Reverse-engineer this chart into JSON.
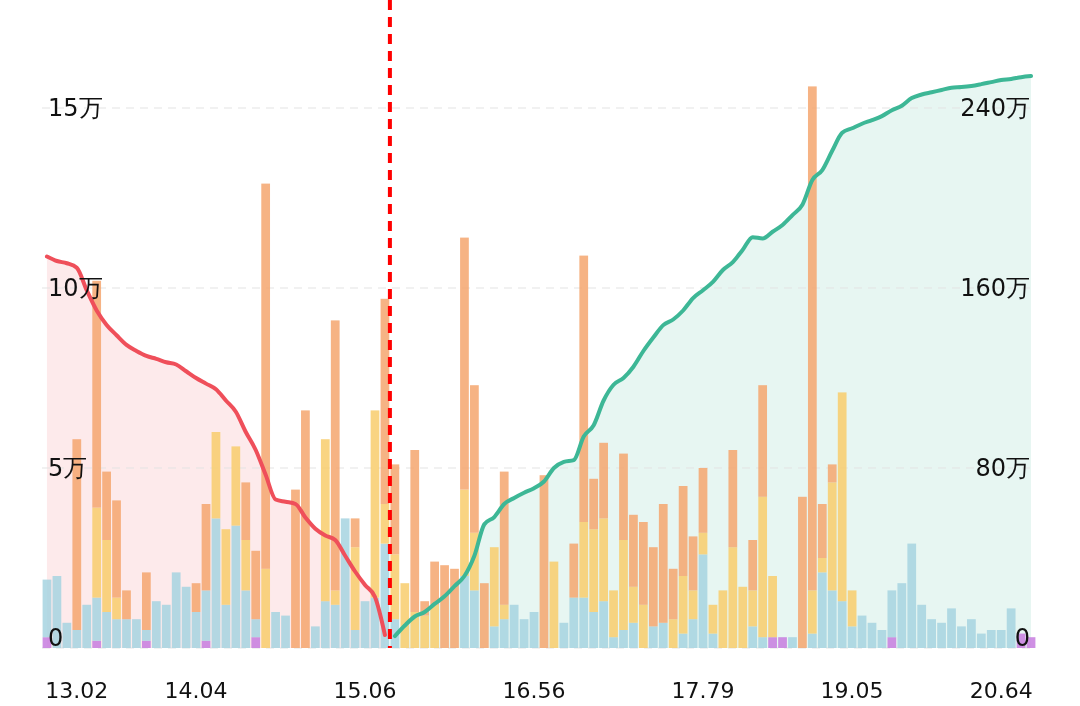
{
  "chart_data": {
    "type": "bar",
    "stacked": true,
    "categories": [
      null,
      null,
      null,
      "13.02",
      null,
      null,
      null,
      null,
      null,
      null,
      null,
      null,
      null,
      null,
      null,
      "14.04",
      null,
      null,
      null,
      null,
      null,
      null,
      null,
      null,
      null,
      null,
      null,
      null,
      null,
      null,
      null,
      null,
      "15.06",
      null,
      null,
      null,
      null,
      null,
      null,
      null,
      null,
      null,
      null,
      null,
      null,
      null,
      null,
      null,
      null,
      "16.56",
      null,
      null,
      null,
      null,
      null,
      null,
      null,
      null,
      null,
      null,
      null,
      null,
      null,
      null,
      null,
      null,
      "17.79",
      null,
      null,
      null,
      null,
      null,
      null,
      null,
      null,
      null,
      null,
      null,
      null,
      null,
      null,
      "19.05",
      null,
      null,
      null,
      null,
      null,
      null,
      null,
      null,
      null,
      null,
      null,
      null,
      null,
      null,
      "20.64",
      null,
      null,
      null
    ],
    "series": [
      {
        "color": "#c77ddf",
        "values": [
          0.3,
          null,
          null,
          null,
          null,
          0.2,
          null,
          null,
          null,
          null,
          0.2,
          null,
          null,
          null,
          null,
          null,
          0.2,
          null,
          null,
          null,
          null,
          0.3,
          null,
          null,
          null,
          null,
          null,
          null,
          null,
          null,
          null,
          null,
          null,
          null,
          null,
          null,
          null,
          null,
          null,
          null,
          null,
          null,
          null,
          null,
          null,
          null,
          null,
          null,
          null,
          null,
          null,
          null,
          null,
          null,
          null,
          null,
          null,
          null,
          null,
          null,
          null,
          null,
          null,
          null,
          null,
          null,
          null,
          null,
          null,
          null,
          null,
          null,
          null,
          0.3,
          0.3,
          null,
          null,
          null,
          null,
          null,
          null,
          null,
          null,
          null,
          null,
          0.3,
          null,
          null,
          null,
          null,
          null,
          null,
          null,
          null,
          null,
          null,
          null,
          null,
          0.4,
          0.3
        ]
      },
      {
        "color": "#a6d3e0",
        "values": [
          1.6,
          2.0,
          0.7,
          0.5,
          1.2,
          1.2,
          1.0,
          0.8,
          0.8,
          0.8,
          0.3,
          1.3,
          1.2,
          2.1,
          1.7,
          1.0,
          1.4,
          3.6,
          1.2,
          3.4,
          1.6,
          0.5,
          null,
          1.0,
          0.9,
          null,
          null,
          0.6,
          1.3,
          1.2,
          3.6,
          0.5,
          1.3,
          1.4,
          2.9,
          0.8,
          null,
          null,
          null,
          null,
          null,
          null,
          2.0,
          1.6,
          null,
          0.6,
          0.8,
          1.2,
          0.8,
          1.0,
          null,
          null,
          0.7,
          1.4,
          1.4,
          1.0,
          1.3,
          0.3,
          0.5,
          0.7,
          null,
          0.6,
          0.7,
          null,
          0.4,
          0.8,
          2.6,
          0.4,
          null,
          null,
          null,
          0.6,
          0.3,
          null,
          null,
          0.3,
          null,
          0.4,
          2.1,
          1.6,
          1.3,
          0.6,
          0.9,
          0.7,
          0.5,
          1.3,
          1.8,
          2.9,
          1.2,
          0.8,
          0.7,
          1.1,
          0.6,
          0.8,
          0.4,
          0.5,
          0.5,
          1.1,
          null,
          null
        ]
      },
      {
        "color": "#f8cd6c",
        "values": [
          null,
          null,
          null,
          null,
          null,
          2.5,
          2.0,
          0.6,
          null,
          null,
          null,
          null,
          null,
          null,
          null,
          null,
          null,
          2.4,
          2.1,
          2.2,
          1.4,
          null,
          2.2,
          null,
          null,
          null,
          null,
          null,
          4.5,
          0.4,
          null,
          2.3,
          null,
          5.2,
          1.1,
          1.8,
          1.8,
          1.0,
          0.9,
          1.2,
          null,
          null,
          2.4,
          1.6,
          null,
          2.2,
          0.4,
          null,
          null,
          null,
          null,
          2.4,
          null,
          null,
          2.1,
          2.3,
          2.3,
          1.3,
          2.5,
          1.0,
          1.2,
          null,
          null,
          0.8,
          1.6,
          0.8,
          0.6,
          0.8,
          1.6,
          2.8,
          1.7,
          1.0,
          3.9,
          1.7,
          null,
          null,
          null,
          1.2,
          0.4,
          3.0,
          5.8,
          1.0,
          null,
          null,
          null,
          null,
          null,
          null,
          null,
          null,
          null,
          null,
          null,
          null,
          null,
          null,
          null,
          null,
          null,
          null
        ]
      },
      {
        "color": "#f5a66f",
        "values": [
          null,
          null,
          null,
          5.3,
          null,
          6.3,
          1.9,
          2.7,
          0.8,
          null,
          1.6,
          null,
          null,
          null,
          null,
          0.8,
          2.4,
          null,
          null,
          null,
          1.6,
          1.9,
          10.7,
          null,
          null,
          4.4,
          6.6,
          null,
          null,
          7.5,
          null,
          0.8,
          null,
          null,
          5.7,
          2.5,
          null,
          4.5,
          0.4,
          1.2,
          2.3,
          2.2,
          7.0,
          4.1,
          1.8,
          null,
          3.7,
          null,
          null,
          null,
          4.8,
          null,
          null,
          1.5,
          7.4,
          1.4,
          2.1,
          null,
          2.4,
          2.0,
          2.3,
          2.2,
          3.3,
          1.4,
          2.5,
          1.5,
          1.8,
          null,
          null,
          2.7,
          null,
          1.4,
          3.1,
          null,
          null,
          null,
          4.2,
          14.0,
          1.5,
          0.5,
          null,
          null,
          null,
          null,
          null,
          null,
          null,
          null,
          null,
          null,
          null,
          null,
          null,
          null,
          null,
          null,
          null,
          null,
          null,
          null
        ]
      },
      {
        "type": "area",
        "axis": "y2",
        "color": "#ef4f5a",
        "values": [
          174,
          172,
          171,
          169,
          159,
          150,
          143.6,
          139,
          134.7,
          132,
          129.8,
          128.5,
          127,
          126,
          123,
          120,
          117.5,
          115,
          110,
          105,
          96,
          88,
          77,
          66,
          65,
          64,
          58,
          53,
          50,
          48,
          41,
          34,
          28,
          22.7,
          5.8,
          null,
          null,
          null,
          null,
          null,
          null,
          null,
          null,
          null,
          null,
          null,
          null,
          null,
          null,
          null,
          null,
          null,
          null,
          null,
          null,
          null,
          null,
          null,
          null,
          null,
          null,
          null,
          null,
          null,
          null,
          null,
          null,
          null,
          null,
          null,
          null,
          null,
          null,
          null,
          null,
          null,
          null,
          null,
          null,
          null,
          null,
          null,
          null,
          null,
          null,
          null,
          null,
          null,
          null,
          null,
          null,
          null,
          null,
          null,
          null,
          null,
          null,
          null,
          null,
          null
        ]
      },
      {
        "type": "area",
        "axis": "y2",
        "color": "#3db796",
        "values": [
          null,
          null,
          null,
          null,
          null,
          null,
          null,
          null,
          null,
          null,
          null,
          null,
          null,
          null,
          null,
          null,
          null,
          null,
          null,
          null,
          null,
          null,
          null,
          null,
          null,
          null,
          null,
          null,
          null,
          null,
          null,
          null,
          null,
          null,
          null,
          5.3,
          10,
          14,
          16,
          19.6,
          23,
          27.5,
          32,
          41,
          55,
          58.2,
          64,
          66.7,
          69,
          71,
          74,
          80,
          82.7,
          83.5,
          94,
          99,
          110,
          117,
          120,
          125,
          132,
          138,
          143.5,
          146,
          150,
          155.5,
          159,
          162.7,
          168,
          171.5,
          177,
          182.6,
          182,
          185,
          188,
          192.4,
          197,
          208,
          212.4,
          221,
          229,
          231,
          233,
          234.6,
          236.4,
          239,
          241,
          244.4,
          246,
          247,
          248,
          249,
          249.3,
          249.8,
          250.6,
          251.5,
          252.4,
          252.9,
          253.7,
          254.2
        ]
      }
    ],
    "ylim": [
      0,
      18
    ],
    "yticks": [
      0,
      {
        "value": 5,
        "label": "5万"
      },
      {
        "value": 10,
        "label": "10万"
      },
      {
        "value": 15,
        "label": "15万"
      }
    ],
    "y2lim": [
      0,
      288
    ],
    "y2ticks": [
      0,
      {
        "value": 80,
        "label": "80万"
      },
      {
        "value": 160,
        "label": "160万"
      },
      {
        "value": 240,
        "label": "240万"
      }
    ],
    "grid": "y"
  }
}
